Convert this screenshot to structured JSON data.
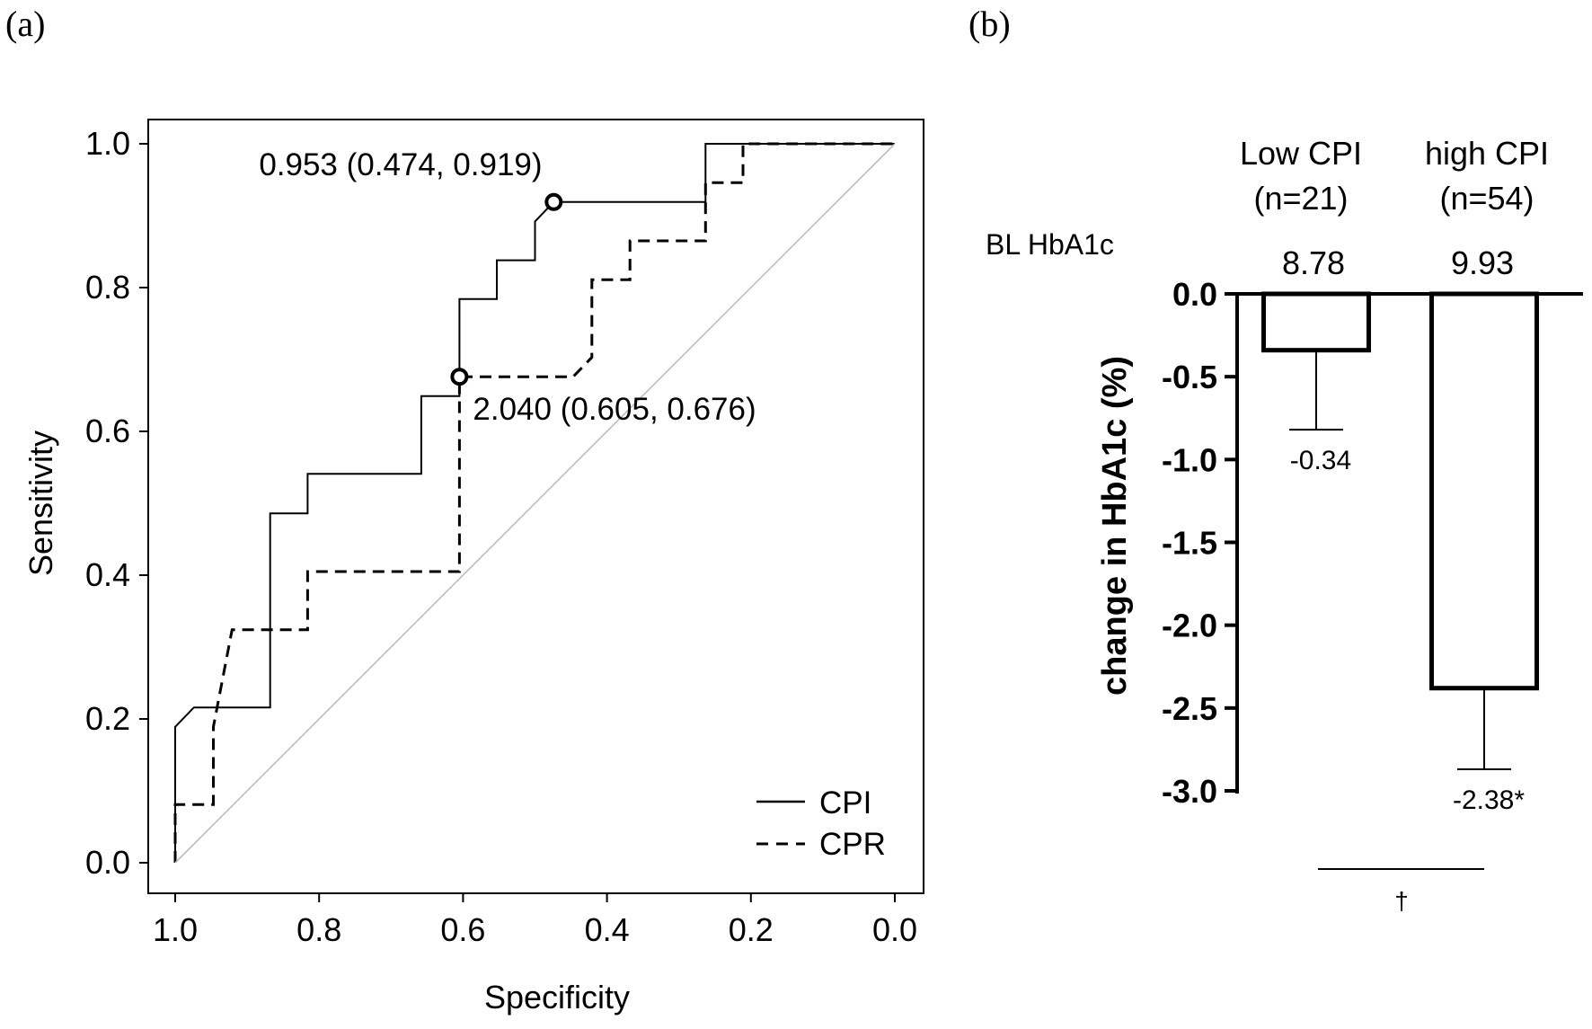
{
  "chart_data": [
    {
      "panel_label": "(a)",
      "type": "line",
      "xlabel": "Specificity",
      "ylabel": "Sensitivity",
      "xlim": [
        1.0,
        0.0
      ],
      "ylim": [
        0.0,
        1.0
      ],
      "x_reversed": true,
      "xticks": [
        "1.0",
        "0.8",
        "0.6",
        "0.4",
        "0.2",
        "0.0"
      ],
      "yticks": [
        "0.0",
        "0.2",
        "0.4",
        "0.6",
        "0.8",
        "1.0"
      ],
      "xtick_values": [
        1.0,
        0.8,
        0.6,
        0.4,
        0.2,
        0.0
      ],
      "ytick_values": [
        0.0,
        0.2,
        0.4,
        0.6,
        0.8,
        1.0
      ],
      "grid": false,
      "legend_position": "bottom-right",
      "legend": [
        {
          "label": "CPI",
          "style": "solid"
        },
        {
          "label": "CPR",
          "style": "dashed"
        }
      ],
      "series": [
        {
          "name": "CPI",
          "style": "solid",
          "points": [
            [
              1.0,
              0.0
            ],
            [
              1.0,
              0.189
            ],
            [
              0.974,
              0.216
            ],
            [
              0.868,
              0.216
            ],
            [
              0.868,
              0.486
            ],
            [
              0.816,
              0.486
            ],
            [
              0.816,
              0.541
            ],
            [
              0.658,
              0.541
            ],
            [
              0.658,
              0.649
            ],
            [
              0.605,
              0.649
            ],
            [
              0.605,
              0.784
            ],
            [
              0.553,
              0.784
            ],
            [
              0.553,
              0.838
            ],
            [
              0.5,
              0.838
            ],
            [
              0.5,
              0.892
            ],
            [
              0.474,
              0.919
            ],
            [
              0.263,
              0.919
            ],
            [
              0.263,
              1.0
            ],
            [
              0.0,
              1.0
            ]
          ]
        },
        {
          "name": "CPR",
          "style": "dashed",
          "points": [
            [
              1.0,
              0.0
            ],
            [
              1.0,
              0.081
            ],
            [
              0.947,
              0.081
            ],
            [
              0.947,
              0.189
            ],
            [
              0.921,
              0.324
            ],
            [
              0.816,
              0.324
            ],
            [
              0.816,
              0.405
            ],
            [
              0.605,
              0.405
            ],
            [
              0.605,
              0.676
            ],
            [
              0.447,
              0.676
            ],
            [
              0.421,
              0.703
            ],
            [
              0.421,
              0.811
            ],
            [
              0.368,
              0.811
            ],
            [
              0.368,
              0.865
            ],
            [
              0.263,
              0.865
            ],
            [
              0.263,
              0.946
            ],
            [
              0.211,
              0.946
            ],
            [
              0.211,
              1.0
            ],
            [
              0.0,
              1.0
            ]
          ]
        },
        {
          "style": "diagonal",
          "points": [
            [
              1.0,
              0.0
            ],
            [
              0.0,
              1.0
            ]
          ]
        }
      ],
      "cutoff_points": [
        {
          "series": "CPI",
          "x": 0.474,
          "y": 0.919,
          "label": "0.953 (0.474, 0.919)"
        },
        {
          "series": "CPR",
          "x": 0.605,
          "y": 0.676,
          "label": "2.040 (0.605, 0.676)"
        }
      ]
    },
    {
      "panel_label": "(b)",
      "type": "bar",
      "ylabel": "change in HbA1c (%)",
      "ylim": [
        -3.0,
        0.0
      ],
      "yticks": [
        "0.0",
        "-0.5",
        "-1.0",
        "-1.5",
        "-2.0",
        "-2.5",
        "-3.0"
      ],
      "ytick_values": [
        0.0,
        -0.5,
        -1.0,
        -1.5,
        -2.0,
        -2.5,
        -3.0
      ],
      "grid": false,
      "baseline_label": "BL HbA1c",
      "categories": [
        {
          "line1": "Low CPI",
          "line2": "(n=21)"
        },
        {
          "line1": "high CPI",
          "line2": "(n=54)"
        }
      ],
      "baseline_values": [
        "8.78",
        "9.93"
      ],
      "values": [
        -0.34,
        -2.38
      ],
      "error_bar_ends": [
        -0.82,
        -2.87
      ],
      "value_labels": [
        "-0.34",
        "-2.38*"
      ],
      "significance_mark": "†"
    }
  ]
}
